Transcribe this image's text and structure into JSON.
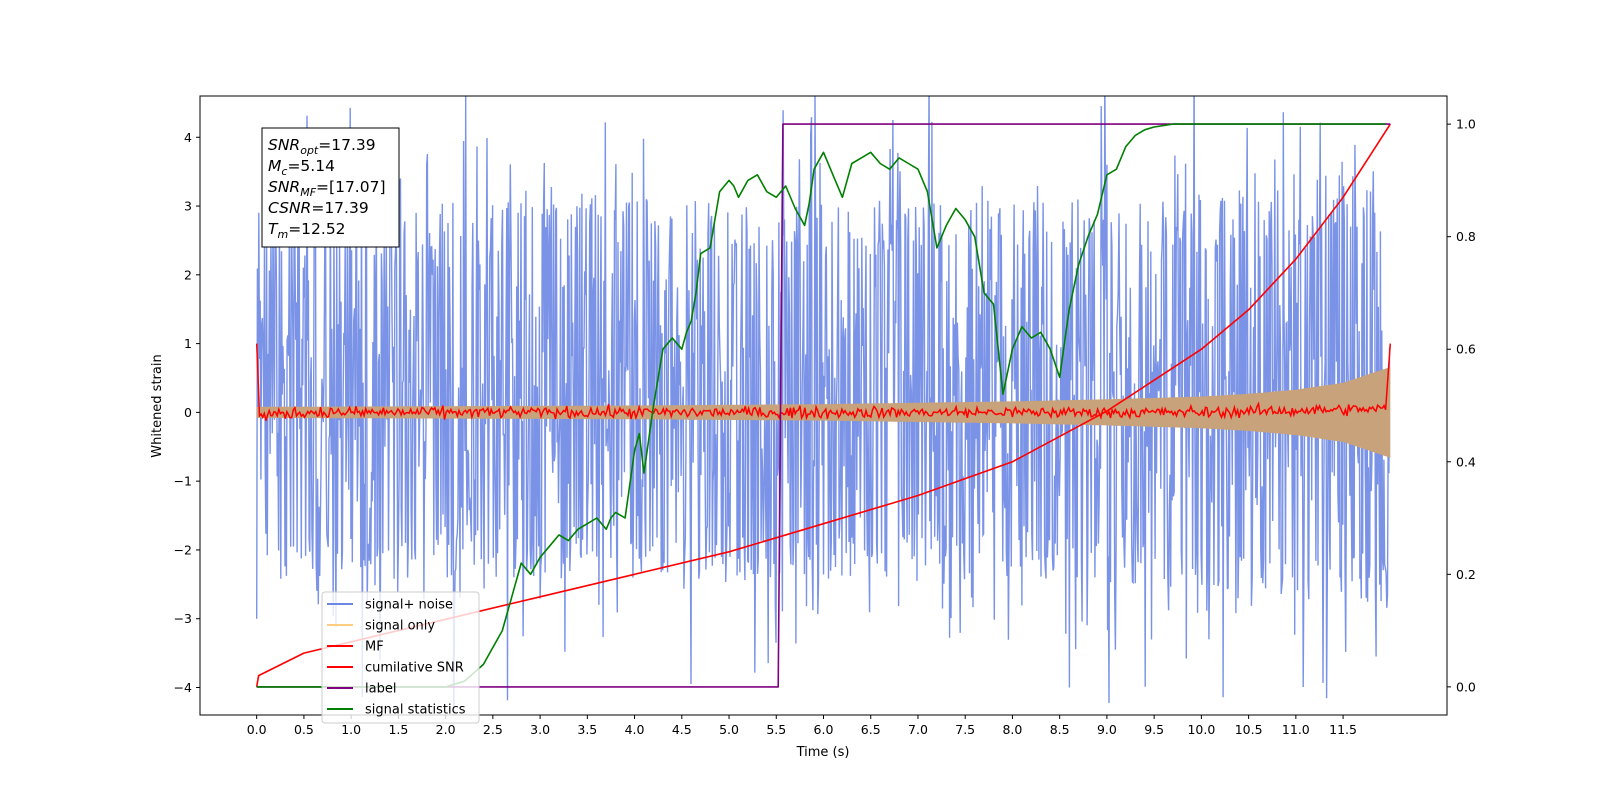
{
  "chart_data": {
    "type": "line",
    "title": "",
    "xlabel": "Time (s)",
    "ylabel": "Whitened strain",
    "y2label": "",
    "xlim": [
      -0.6,
      12.6
    ],
    "ylim": [
      -4.4,
      4.6
    ],
    "y2lim": [
      -0.05,
      1.05
    ],
    "x_ticks": [
      "0.0",
      "0.5",
      "1.0",
      "1.5",
      "2.0",
      "2.5",
      "3.0",
      "3.5",
      "4.0",
      "4.5",
      "5.0",
      "5.5",
      "6.0",
      "6.5",
      "7.0",
      "7.5",
      "8.0",
      "8.5",
      "9.0",
      "9.5",
      "10.0",
      "10.5",
      "11.0",
      "11.5"
    ],
    "y_ticks": [
      "4",
      "3",
      "2",
      "1",
      "0",
      "−1",
      "−2",
      "−3",
      "−4"
    ],
    "y2_ticks": [
      "1.0",
      "0.8",
      "0.6",
      "0.4",
      "0.2",
      "0.0"
    ],
    "grid": false,
    "legend_position": "lower-left",
    "annotation": [
      {
        "base": "SNR",
        "sub": "opt",
        "rest": "=17.39"
      },
      {
        "base": "M",
        "sub": "c",
        "rest": "=5.14"
      },
      {
        "base": "SNR",
        "sub": "MF",
        "rest": "=[17.07]"
      },
      {
        "base": "CSNR",
        "sub": "",
        "rest": "=17.39"
      },
      {
        "base": "T",
        "sub": "m",
        "rest": "=12.52"
      }
    ],
    "series": [
      {
        "name": "signal+ noise",
        "color": "#6b87e3",
        "axis": "left",
        "style": "noise band",
        "x": [
          0.0,
          2.0,
          4.0,
          6.0,
          8.0,
          10.0,
          12.0
        ],
        "typical_range": [
          [
            -2.2,
            2.8
          ],
          [
            -2.2,
            2.8
          ],
          [
            -2.2,
            2.8
          ],
          [
            -2.2,
            2.8
          ],
          [
            -2.2,
            2.8
          ],
          [
            -2.3,
            2.9
          ],
          [
            -2.6,
            3.2
          ]
        ],
        "peaks": [
          [
            0.0,
            -3.0
          ],
          [
            1.8,
            3.6
          ],
          [
            4.6,
            -3.95
          ],
          [
            5.5,
            -3.35
          ],
          [
            8.6,
            -4.0
          ],
          [
            9.0,
            3.6
          ],
          [
            11.05,
            4.15
          ],
          [
            11.85,
            -3.55
          ]
        ]
      },
      {
        "name": "signal only",
        "color": "#c8a27a",
        "axis": "left",
        "style": "chirp envelope",
        "x": [
          0.0,
          2.0,
          4.0,
          6.0,
          8.0,
          9.0,
          10.0,
          10.5,
          11.0,
          11.5,
          12.0
        ],
        "envelope": [
          0.08,
          0.09,
          0.1,
          0.12,
          0.16,
          0.19,
          0.23,
          0.27,
          0.33,
          0.43,
          0.66
        ]
      },
      {
        "name": "MF",
        "color": "#ff0000",
        "axis": "left",
        "x": [
          0.0,
          0.03,
          0.5,
          2.0,
          4.0,
          6.0,
          8.0,
          10.0,
          11.95,
          12.0
        ],
        "y": [
          1.0,
          -0.05,
          0.0,
          0.0,
          0.0,
          0.0,
          0.0,
          0.0,
          0.05,
          1.0
        ]
      },
      {
        "name": "cumilative SNR",
        "color": "#ff0000",
        "axis": "right",
        "x": [
          0.0,
          0.02,
          0.5,
          1.0,
          2.0,
          3.0,
          4.0,
          5.0,
          6.0,
          7.0,
          8.0,
          9.0,
          10.0,
          10.5,
          11.0,
          11.5,
          12.0
        ],
        "y": [
          0.0,
          0.02,
          0.06,
          0.08,
          0.12,
          0.16,
          0.2,
          0.24,
          0.29,
          0.34,
          0.4,
          0.49,
          0.6,
          0.67,
          0.76,
          0.87,
          1.0
        ]
      },
      {
        "name": "label",
        "color": "#800080",
        "axis": "right",
        "x": [
          0.0,
          5.52,
          5.57,
          12.0
        ],
        "y": [
          0.0,
          0.0,
          1.0,
          1.0
        ]
      },
      {
        "name": "signal statistics",
        "color": "#008000",
        "axis": "right",
        "x": [
          0.0,
          0.5,
          1.0,
          1.5,
          2.0,
          2.2,
          2.4,
          2.6,
          2.7,
          2.8,
          2.9,
          3.0,
          3.1,
          3.2,
          3.3,
          3.4,
          3.5,
          3.6,
          3.7,
          3.75,
          3.8,
          3.9,
          4.0,
          4.05,
          4.1,
          4.2,
          4.3,
          4.4,
          4.5,
          4.55,
          4.6,
          4.65,
          4.7,
          4.8,
          4.9,
          5.0,
          5.05,
          5.1,
          5.2,
          5.3,
          5.4,
          5.5,
          5.6,
          5.7,
          5.8,
          5.85,
          5.9,
          6.0,
          6.1,
          6.2,
          6.3,
          6.4,
          6.5,
          6.6,
          6.7,
          6.8,
          6.9,
          7.0,
          7.1,
          7.2,
          7.3,
          7.4,
          7.5,
          7.6,
          7.7,
          7.8,
          7.9,
          8.0,
          8.1,
          8.2,
          8.3,
          8.4,
          8.5,
          8.6,
          8.7,
          8.8,
          8.9,
          9.0,
          9.1,
          9.2,
          9.3,
          9.4,
          9.5,
          9.7,
          10.0,
          10.5,
          11.0,
          11.5,
          11.95
        ],
        "y": [
          0.0,
          0.0,
          0.0,
          0.0,
          0.0,
          0.01,
          0.04,
          0.1,
          0.16,
          0.22,
          0.2,
          0.23,
          0.25,
          0.27,
          0.26,
          0.28,
          0.29,
          0.3,
          0.28,
          0.3,
          0.31,
          0.3,
          0.42,
          0.45,
          0.38,
          0.5,
          0.6,
          0.62,
          0.6,
          0.63,
          0.65,
          0.7,
          0.77,
          0.78,
          0.88,
          0.9,
          0.89,
          0.87,
          0.9,
          0.91,
          0.88,
          0.87,
          0.89,
          0.85,
          0.82,
          0.86,
          0.92,
          0.95,
          0.91,
          0.87,
          0.93,
          0.94,
          0.95,
          0.93,
          0.92,
          0.94,
          0.93,
          0.92,
          0.88,
          0.78,
          0.82,
          0.85,
          0.83,
          0.8,
          0.7,
          0.68,
          0.52,
          0.6,
          0.64,
          0.62,
          0.63,
          0.6,
          0.55,
          0.67,
          0.75,
          0.8,
          0.84,
          0.91,
          0.92,
          0.96,
          0.98,
          0.99,
          0.995,
          1.0,
          1.0,
          1.0,
          1.0,
          1.0,
          1.0
        ]
      }
    ]
  }
}
